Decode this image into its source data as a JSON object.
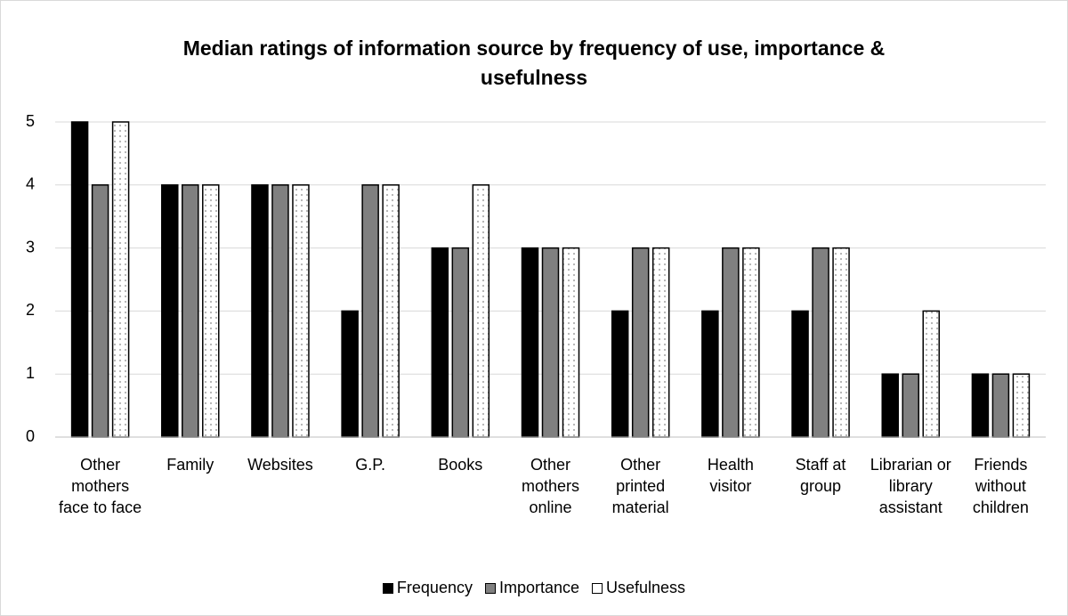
{
  "chart_data": {
    "type": "bar",
    "title": "Median ratings of information source by frequency of use, importance & usefulness",
    "categories": [
      "Other mothers face to face",
      "Family",
      "Websites",
      "G.P.",
      "Books",
      "Other mothers online",
      "Other printed material",
      "Health visitor",
      "Staff at group",
      "Librarian or library assistant",
      "Friends without children"
    ],
    "series": [
      {
        "name": "Frequency",
        "color": "#000000",
        "values": [
          5,
          4,
          4,
          2,
          3,
          3,
          2,
          2,
          2,
          1,
          1
        ]
      },
      {
        "name": "Importance",
        "color": "#808080",
        "values": [
          4,
          4,
          4,
          4,
          3,
          3,
          3,
          3,
          3,
          1,
          1
        ]
      },
      {
        "name": "Usefulness",
        "color": "#ffffff",
        "values": [
          5,
          4,
          4,
          4,
          4,
          3,
          3,
          3,
          3,
          2,
          1
        ]
      }
    ],
    "ylim": [
      0,
      5
    ],
    "yticks": [
      0,
      1,
      2,
      3,
      4,
      5
    ],
    "grid": true,
    "legend": "bottom"
  }
}
